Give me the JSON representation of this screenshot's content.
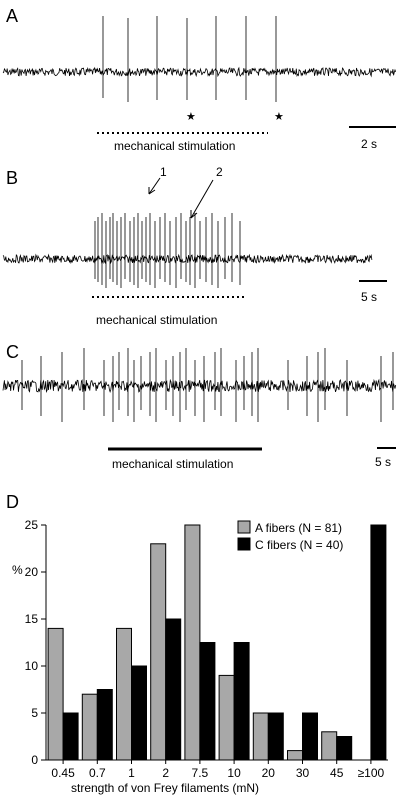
{
  "panels": {
    "a": {
      "letter": "A",
      "stim_label": "mechanical stimulation",
      "scale_label": "2 s",
      "marker": "★"
    },
    "b": {
      "letter": "B",
      "stim_label": "mechanical stimulation",
      "scale_label": "5 s",
      "arrow_labels": [
        "1",
        "2"
      ]
    },
    "c": {
      "letter": "C",
      "stim_label": "mechanical stimulation",
      "scale_label": "5 s"
    },
    "d": {
      "letter": "D"
    }
  },
  "chart_data": {
    "type": "bar",
    "categories": [
      "0.45",
      "0.7",
      "1",
      "2",
      "7.5",
      "10",
      "20",
      "30",
      "45",
      "≥100"
    ],
    "series": [
      {
        "name": "A fibers (N = 81)",
        "color": "#a8a8a8",
        "values": [
          14,
          7,
          14,
          23,
          25,
          9,
          5,
          1,
          3,
          0
        ]
      },
      {
        "name": "C fibers (N = 40)",
        "color": "#000000",
        "values": [
          5,
          7.5,
          10,
          15,
          12.5,
          12.5,
          5,
          5,
          2.5,
          25
        ]
      }
    ],
    "xlabel": "strength of von Frey filaments (mN)",
    "ylabel": "%",
    "ylim": [
      0,
      25
    ],
    "yticks": [
      0,
      5,
      10,
      15,
      20,
      25
    ],
    "legend": "top-right",
    "grid": false
  }
}
